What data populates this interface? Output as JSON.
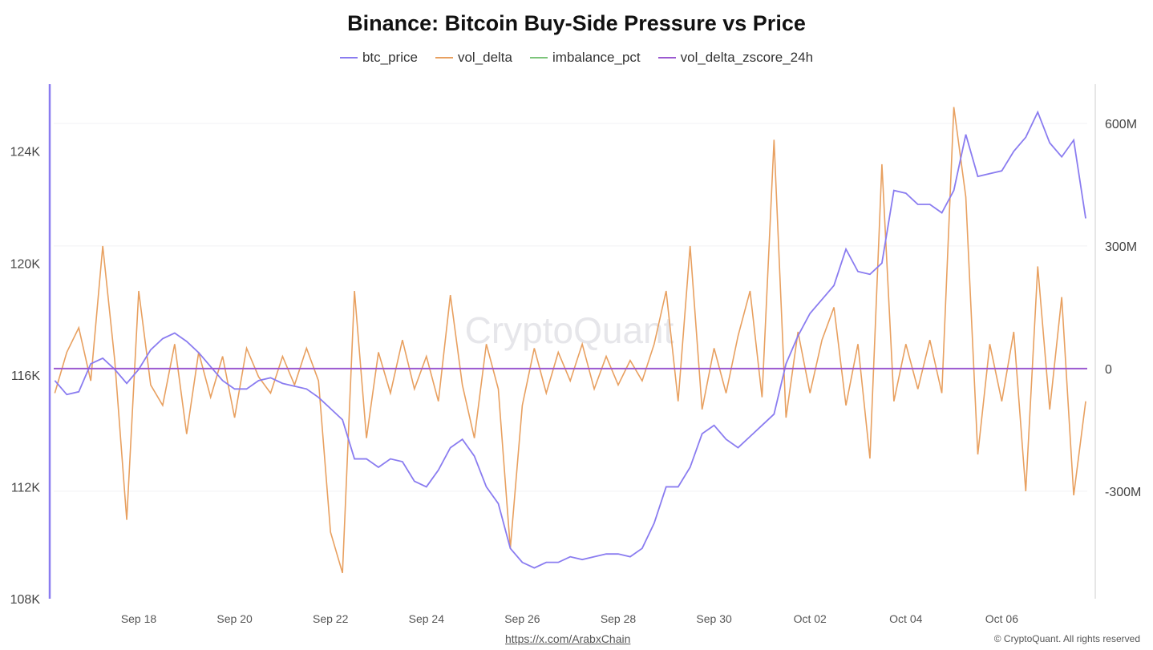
{
  "chart_data": {
    "type": "line",
    "title": "Binance: Bitcoin Buy-Side Pressure vs Price",
    "legend_placement": "top",
    "x_start": "Sep 16 06:00",
    "x_step_hours": 6,
    "x_ticks": [
      "Sep 18",
      "Sep 20",
      "Sep 22",
      "Sep 24",
      "Sep 26",
      "Sep 28",
      "Sep 30",
      "Oct 02",
      "Oct 04",
      "Oct 06"
    ],
    "y_left": {
      "ticks": [
        108000,
        112000,
        116000,
        120000,
        124000
      ],
      "tick_labels": [
        "108K",
        "112K",
        "116K",
        "120K",
        "124K"
      ],
      "range": [
        108000,
        126400
      ]
    },
    "y_right": {
      "ticks": [
        -300,
        0,
        300,
        600
      ],
      "tick_labels": [
        "-300M",
        "0",
        "300M",
        "600M"
      ],
      "range": [
        -563,
        696
      ],
      "unit": "M"
    },
    "grid": true,
    "watermark": "CryptoQuant",
    "series": [
      {
        "name": "btc_price",
        "axis": "left",
        "color": "#8a7cf0",
        "values": [
          115.8,
          115.3,
          115.4,
          116.4,
          116.6,
          116.2,
          115.7,
          116.2,
          116.9,
          117.3,
          117.5,
          117.2,
          116.8,
          116.3,
          115.8,
          115.5,
          115.5,
          115.8,
          115.9,
          115.7,
          115.6,
          115.5,
          115.2,
          114.8,
          114.4,
          113.0,
          113.0,
          112.7,
          113.0,
          112.9,
          112.2,
          112.0,
          112.6,
          113.4,
          113.7,
          113.1,
          112.0,
          111.4,
          109.8,
          109.3,
          109.1,
          109.3,
          109.3,
          109.5,
          109.4,
          109.5,
          109.6,
          109.6,
          109.5,
          109.8,
          110.7,
          112.0,
          112.0,
          112.7,
          113.9,
          114.2,
          113.7,
          113.4,
          113.8,
          114.2,
          114.6,
          116.4,
          117.4,
          118.2,
          118.7,
          119.2,
          120.5,
          119.7,
          119.6,
          120.0,
          122.6,
          122.5,
          122.1,
          122.1,
          121.8,
          122.6,
          124.6,
          123.1,
          123.2,
          123.3,
          124.0,
          124.5,
          125.4,
          124.3,
          123.8,
          124.4,
          121.6
        ],
        "value_unit": "K"
      },
      {
        "name": "vol_delta",
        "axis": "right",
        "color": "#e8a060",
        "values": [
          -60,
          40,
          100,
          -30,
          300,
          20,
          -370,
          190,
          -40,
          -90,
          60,
          -160,
          40,
          -70,
          30,
          -120,
          50,
          -20,
          -60,
          30,
          -40,
          50,
          -30,
          -400,
          -500,
          190,
          -170,
          40,
          -60,
          70,
          -50,
          30,
          -80,
          180,
          -40,
          -170,
          60,
          -50,
          -440,
          -90,
          50,
          -60,
          40,
          -30,
          60,
          -50,
          30,
          -40,
          20,
          -30,
          60,
          190,
          -80,
          300,
          -100,
          50,
          -60,
          80,
          190,
          -70,
          560,
          -120,
          90,
          -60,
          70,
          150,
          -90,
          60,
          -220,
          500,
          -80,
          60,
          -50,
          70,
          -60,
          640,
          420,
          -210,
          60,
          -80,
          90,
          -300,
          250,
          -100,
          175,
          -310,
          -80
        ],
        "value_unit": "M"
      },
      {
        "name": "imbalance_pct",
        "axis": "right",
        "color": "#7cc47a",
        "values": []
      },
      {
        "name": "vol_delta_zscore_24h",
        "axis": "right",
        "color": "#9b59d0",
        "values": [
          0,
          0
        ]
      }
    ]
  },
  "footer": {
    "source_link": "https://x.com/ArabxChain",
    "copyright": "© CryptoQuant. All rights reserved"
  }
}
